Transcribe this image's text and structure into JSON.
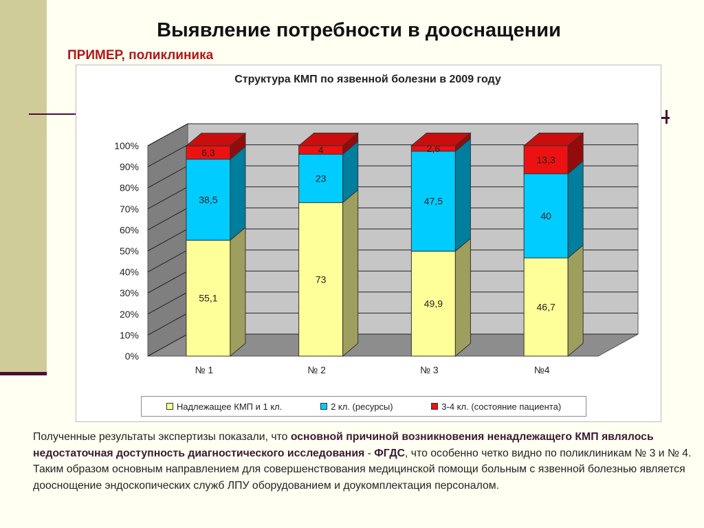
{
  "title": "Выявление потребности в дооснащении",
  "subtitle": "ПРИМЕР, поликлиника",
  "chart_data": {
    "type": "bar",
    "stacked": true,
    "three_d": true,
    "title": "Структура КМП по язвенной болезни в 2009 году",
    "categories": [
      "№ 1",
      "№ 2",
      "№ 3",
      "№4"
    ],
    "series": [
      {
        "name": "Надлежащее КМП и 1 кл.",
        "values": [
          55.1,
          73,
          49.9,
          46.7
        ],
        "color": "#ffff99"
      },
      {
        "name": "2 кл. (ресурсы)",
        "values": [
          38.5,
          23,
          47.5,
          40
        ],
        "color": "#00ccff"
      },
      {
        "name": "3-4 кл. (состояние пациента)",
        "values": [
          6.3,
          4,
          2.6,
          13.3
        ],
        "color": "#ee1111"
      }
    ],
    "y_ticks": [
      "0%",
      "10%",
      "20%",
      "30%",
      "40%",
      "50%",
      "60%",
      "70%",
      "80%",
      "90%",
      "100%"
    ],
    "ylim": [
      0,
      100
    ],
    "grid": true,
    "legend_position": "bottom"
  },
  "colors": {
    "accent_title": "#b11616",
    "decor_purple": "#4a0f33",
    "band": "#cfcc9a",
    "wall_back": "#c6c6c6",
    "wall_side": "#7f7f7f",
    "floor": "#8d8d8d"
  },
  "body_text": {
    "p1": "Полученные результаты экспертизы показали, что ",
    "b1": "основной причиной возникновения ненадлежащего КМП являлось недостаточная доступность диагностического исследования",
    "p2": " - ",
    "b2": "ФГДС",
    "p3": ", что особенно четко видно по поликлиникам № 3 и № 4. Таким образом основным направлением для совершенствования медицинской помощи больным с язвенной болезнью является дооснощение эндоскопических служб ЛПУ оборудованием и доукомплектация персоналом."
  }
}
